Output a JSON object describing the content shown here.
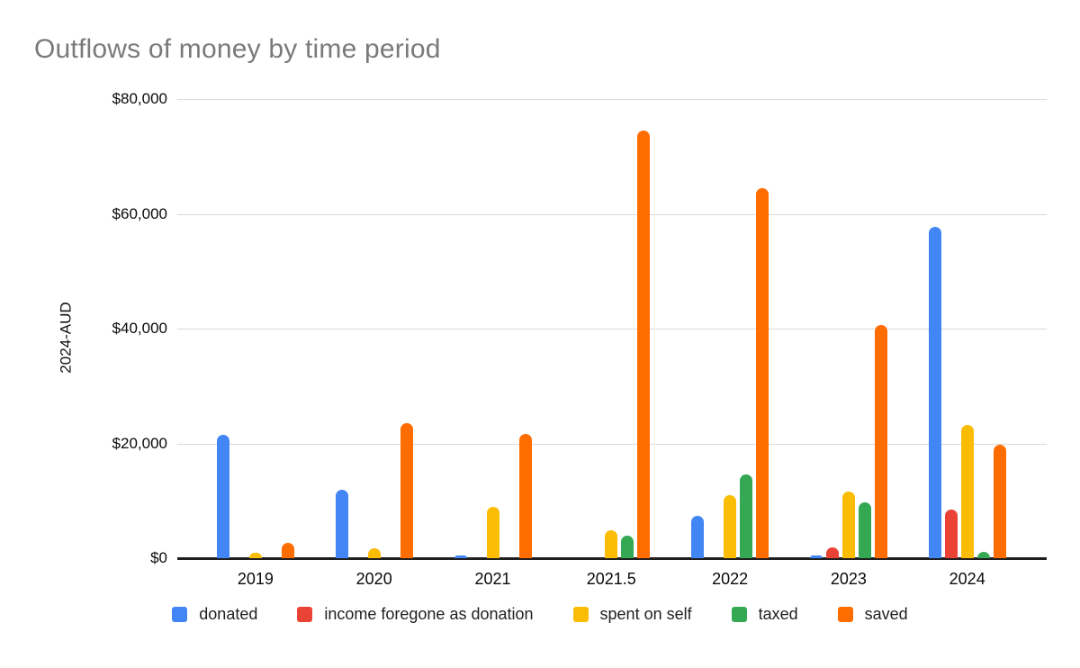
{
  "title": "Outflows of money by time period",
  "colors": {
    "title_gray": "#7a7a7a",
    "axis_text": "#0a0a0a",
    "gridline": "#d9d9d9",
    "baseline": "#1f1f1f",
    "background": "#ffffff"
  },
  "chart_data": {
    "type": "bar",
    "title": "Outflows of money by time period",
    "xlabel": "",
    "ylabel": "2024-AUD",
    "ylim": [
      0,
      80000
    ],
    "ytick_values": [
      0,
      20000,
      40000,
      60000,
      80000
    ],
    "ytick_labels": [
      "$0",
      "$20,000",
      "$40,000",
      "$60,000",
      "$80,000"
    ],
    "categories": [
      "2019",
      "2020",
      "2021",
      "2021.5",
      "2022",
      "2023",
      "2024"
    ],
    "series": [
      {
        "name": "donated",
        "color": "#4285F4",
        "values": [
          21500,
          12000,
          400,
          0,
          7400,
          500,
          57700
        ]
      },
      {
        "name": "income foregone as donation",
        "color": "#EA4335",
        "values": [
          0,
          0,
          0,
          0,
          0,
          1900,
          8400
        ]
      },
      {
        "name": "spent on self",
        "color": "#FBBC04",
        "values": [
          900,
          1800,
          9000,
          4900,
          11000,
          11600,
          23200
        ]
      },
      {
        "name": "taxed",
        "color": "#34A853",
        "values": [
          0,
          0,
          0,
          4000,
          14600,
          9700,
          1100
        ]
      },
      {
        "name": "saved",
        "color": "#FF6D01",
        "values": [
          2600,
          23500,
          21700,
          74500,
          64500,
          40600,
          19700
        ]
      }
    ],
    "grid": true,
    "legend_position": "bottom"
  }
}
